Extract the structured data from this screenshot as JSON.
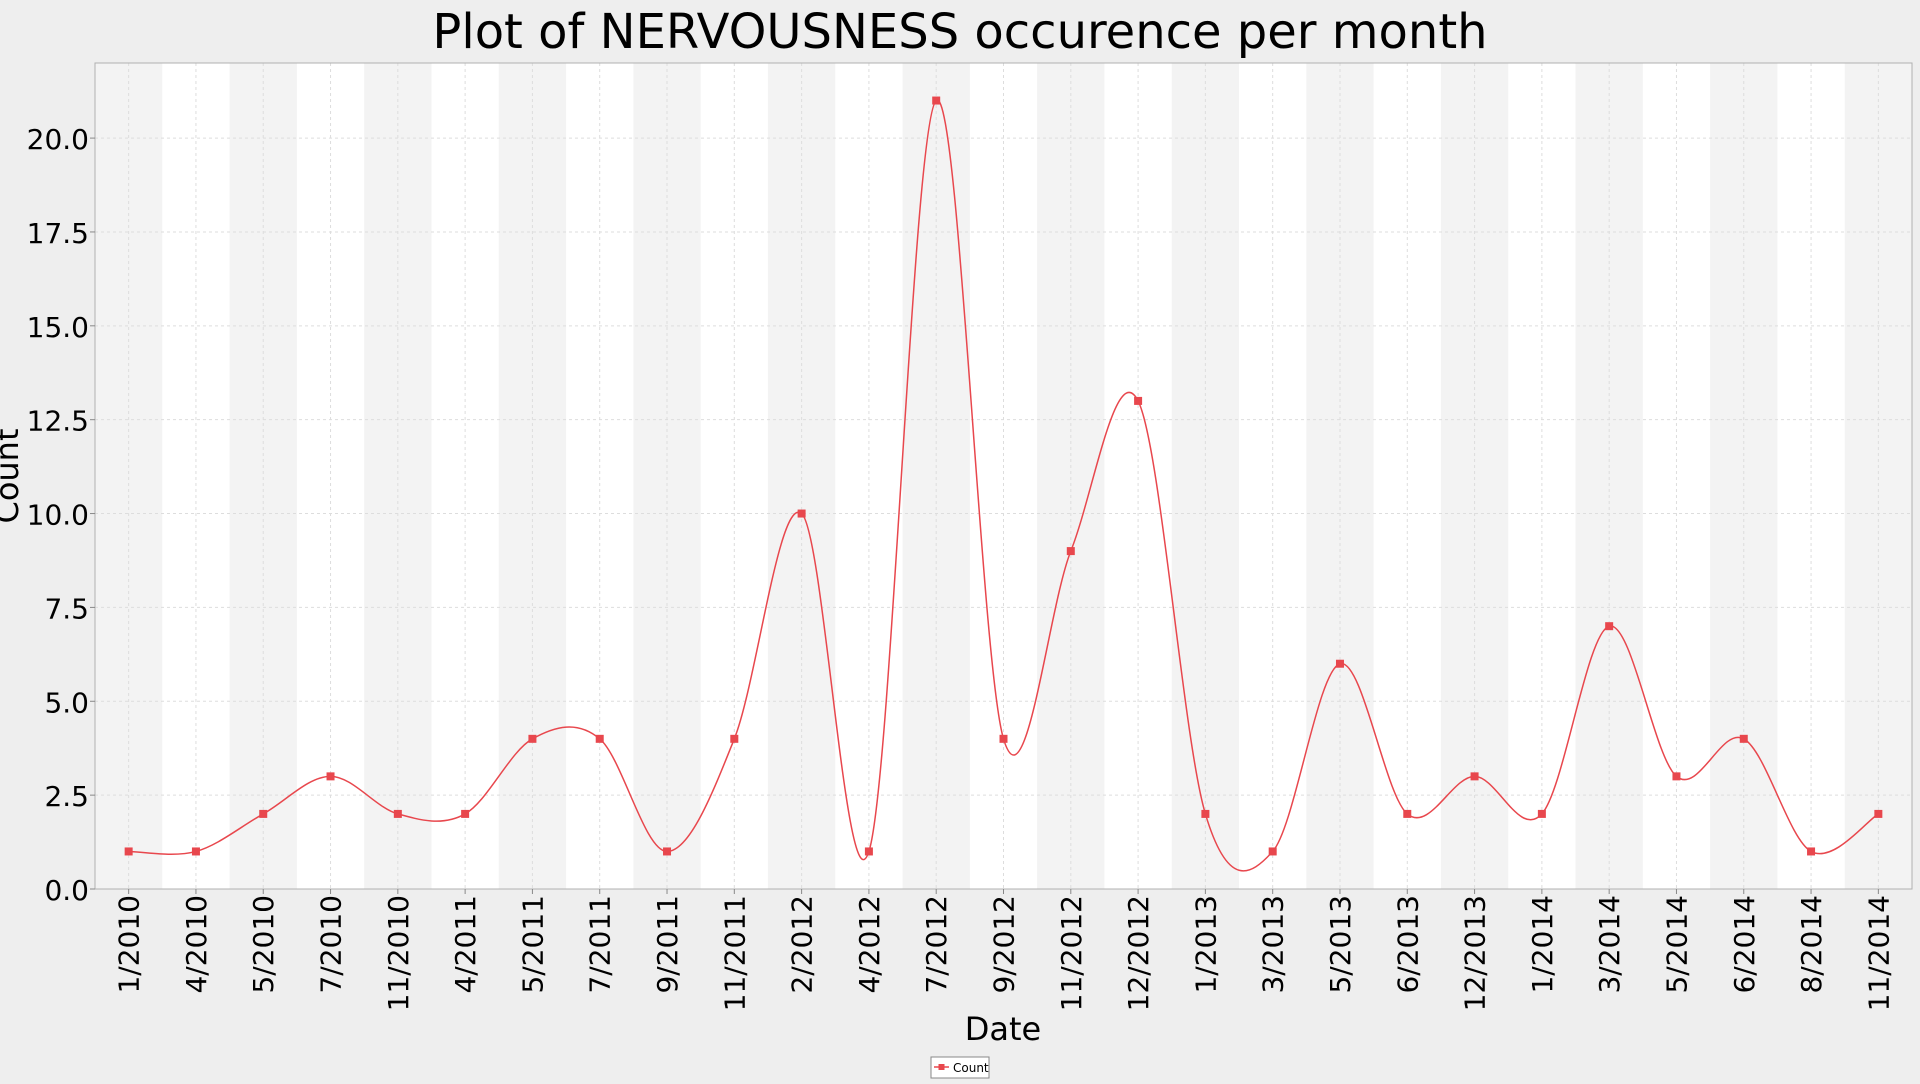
{
  "chart_data": {
    "type": "line",
    "title": "Plot of NERVOUSNESS occurence per month",
    "xlabel": "Date",
    "ylabel": "Count",
    "ylim": [
      0,
      22
    ],
    "yticks": [
      "0.0",
      "2.5",
      "5.0",
      "7.5",
      "10.0",
      "12.5",
      "15.0",
      "17.5",
      "20.0"
    ],
    "grid": true,
    "legend_position": "bottom-center",
    "colors": {
      "series": "#e8474d",
      "band_shaded": "#f3f3f3",
      "band_plain": "#ffffff",
      "background": "#eeeeee",
      "grid": "#dddddd"
    },
    "categories": [
      "1/2010",
      "4/2010",
      "5/2010",
      "7/2010",
      "11/2010",
      "4/2011",
      "5/2011",
      "7/2011",
      "9/2011",
      "11/2011",
      "2/2012",
      "4/2012",
      "7/2012",
      "9/2012",
      "11/2012",
      "12/2012",
      "1/2013",
      "3/2013",
      "5/2013",
      "6/2013",
      "12/2013",
      "1/2014",
      "3/2014",
      "5/2014",
      "6/2014",
      "8/2014",
      "11/2014"
    ],
    "series": [
      {
        "name": "Count",
        "values": [
          1,
          1,
          2,
          3,
          2,
          2,
          4,
          4,
          1,
          4,
          10,
          1,
          21,
          4,
          9,
          13,
          2,
          1,
          6,
          2,
          3,
          2,
          7,
          3,
          4,
          1,
          2
        ]
      }
    ]
  }
}
